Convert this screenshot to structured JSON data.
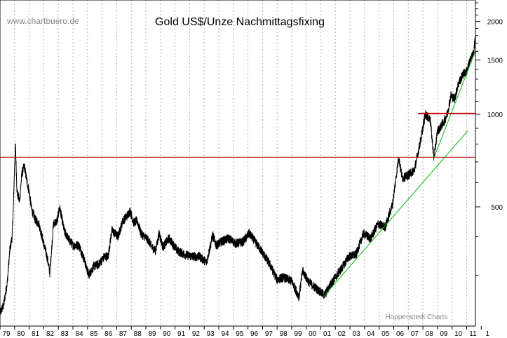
{
  "chart_data": {
    "type": "line",
    "title": "Gold US$/Unze Nachmittagsfixing",
    "watermark": "www.chartbuero.de",
    "source_note": "Hoppenstedt Charts",
    "xlabel": "",
    "ylabel": "",
    "x_scale": "time",
    "y_scale": "log",
    "xlim": [
      1979.0,
      2011.6
    ],
    "ylim": [
      205,
      2350
    ],
    "x_tick_labels": [
      "79",
      "80",
      "81",
      "82",
      "83",
      "84",
      "85",
      "86",
      "87",
      "88",
      "89",
      "90",
      "91",
      "92",
      "93",
      "94",
      "95",
      "96",
      "97",
      "98",
      "99",
      "00",
      "01",
      "02",
      "03",
      "04",
      "05",
      "06",
      "07",
      "08",
      "09",
      "10",
      "11",
      "1"
    ],
    "y_tick_values": [
      500,
      1000,
      1500,
      2000
    ],
    "y_tick_labels": [
      "500",
      "1000",
      "1500",
      "2000"
    ],
    "grid": {
      "vertical": true,
      "horizontal": false
    },
    "colors": {
      "price": "#000000",
      "horizontal_lines": "#cc0000",
      "trendlines": "#00bb00",
      "grid": "#b4b4b4"
    },
    "series": [
      {
        "values": [
          [
            "1979-01",
            226
          ],
          [
            "1979-04",
            240
          ],
          [
            "1979-07",
            285
          ],
          [
            "1979-09",
            360
          ],
          [
            "1979-11",
            400
          ],
          [
            "1979-12",
            500
          ],
          [
            "1980-01",
            680
          ],
          [
            "1980-01-21",
            800
          ],
          [
            "1980-03",
            560
          ],
          [
            "1980-05",
            520
          ],
          [
            "1980-07",
            640
          ],
          [
            "1980-09",
            680
          ],
          [
            "1980-11",
            610
          ],
          [
            "1981-01",
            560
          ],
          [
            "1981-03",
            490
          ],
          [
            "1981-06",
            455
          ],
          [
            "1981-09",
            440
          ],
          [
            "1982-01",
            380
          ],
          [
            "1982-04",
            340
          ],
          [
            "1982-06",
            305
          ],
          [
            "1982-09",
            440
          ],
          [
            "1982-12",
            450
          ],
          [
            "1983-02",
            500
          ],
          [
            "1983-06",
            415
          ],
          [
            "1983-10",
            390
          ],
          [
            "1984-01",
            375
          ],
          [
            "1984-06",
            375
          ],
          [
            "1984-10",
            340
          ],
          [
            "1985-02",
            300
          ],
          [
            "1985-06",
            320
          ],
          [
            "1985-10",
            325
          ],
          [
            "1986-03",
            345
          ],
          [
            "1986-06",
            345
          ],
          [
            "1986-09",
            420
          ],
          [
            "1987-02",
            400
          ],
          [
            "1987-06",
            450
          ],
          [
            "1987-10",
            470
          ],
          [
            "1987-12",
            486
          ],
          [
            "1988-03",
            445
          ],
          [
            "1988-06",
            450
          ],
          [
            "1988-09",
            410
          ],
          [
            "1989-03",
            390
          ],
          [
            "1989-06",
            370
          ],
          [
            "1989-09",
            360
          ],
          [
            "1989-12",
            410
          ],
          [
            "1990-03",
            370
          ],
          [
            "1990-08",
            395
          ],
          [
            "1991-03",
            360
          ],
          [
            "1991-09",
            350
          ],
          [
            "1992-03",
            345
          ],
          [
            "1992-09",
            345
          ],
          [
            "1993-03",
            330
          ],
          [
            "1993-08",
            405
          ],
          [
            "1993-11",
            375
          ],
          [
            "1994-03",
            385
          ],
          [
            "1994-09",
            395
          ],
          [
            "1995-03",
            380
          ],
          [
            "1995-09",
            385
          ],
          [
            "1996-02",
            410
          ],
          [
            "1996-07",
            385
          ],
          [
            "1997-01",
            355
          ],
          [
            "1997-07",
            325
          ],
          [
            "1998-01",
            290
          ],
          [
            "1998-06",
            295
          ],
          [
            "1999-01",
            287
          ],
          [
            "1999-07",
            255
          ],
          [
            "1999-10",
            310
          ],
          [
            "2000-03",
            285
          ],
          [
            "2000-09",
            272
          ],
          [
            "2001-04",
            258
          ],
          [
            "2001-09",
            280
          ],
          [
            "2002-06",
            315
          ],
          [
            "2002-12",
            345
          ],
          [
            "2003-06",
            350
          ],
          [
            "2003-12",
            410
          ],
          [
            "2004-06",
            395
          ],
          [
            "2004-12",
            440
          ],
          [
            "2005-06",
            430
          ],
          [
            "2005-12",
            510
          ],
          [
            "2006-05",
            725
          ],
          [
            "2006-08",
            620
          ],
          [
            "2006-12",
            630
          ],
          [
            "2007-06",
            660
          ],
          [
            "2007-11",
            820
          ],
          [
            "2008-03",
            1000
          ],
          [
            "2008-07",
            960
          ],
          [
            "2008-10",
            720
          ],
          [
            "2009-01",
            880
          ],
          [
            "2009-06",
            940
          ],
          [
            "2009-09",
            1000
          ],
          [
            "2009-12",
            1150
          ],
          [
            "2010-03",
            1120
          ],
          [
            "2010-06",
            1250
          ],
          [
            "2010-10",
            1350
          ],
          [
            "2011-01",
            1380
          ],
          [
            "2011-04",
            1500
          ],
          [
            "2011-07",
            1600
          ],
          [
            "2011-08",
            1800
          ]
        ]
      }
    ],
    "reference_lines": [
      {
        "kind": "horizontal",
        "y": 725,
        "x_from": "1979-01",
        "x_to": "2011-08",
        "color": "#cc0000"
      },
      {
        "kind": "horizontal",
        "y": 1005,
        "x_from": "2007-09",
        "x_to": "2011-08",
        "color": "#cc0000"
      }
    ],
    "trendlines": [
      {
        "from": [
          "2001-03",
          255
        ],
        "to": [
          "2011-02",
          885
        ],
        "color": "#00bb00"
      },
      {
        "from": [
          "2008-10",
          720
        ],
        "to": [
          "2011-08",
          1600
        ],
        "color": "#00bb00"
      }
    ]
  }
}
